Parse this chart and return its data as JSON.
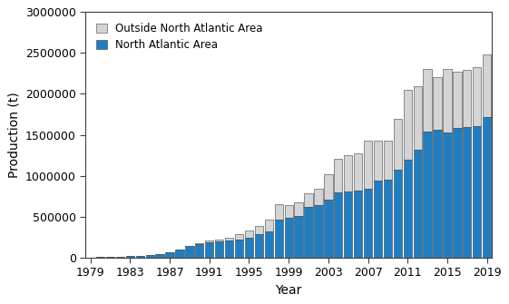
{
  "years": [
    1980,
    1981,
    1982,
    1983,
    1984,
    1985,
    1986,
    1987,
    1988,
    1989,
    1990,
    1991,
    1992,
    1993,
    1994,
    1995,
    1996,
    1997,
    1998,
    1999,
    2000,
    2001,
    2002,
    2003,
    2004,
    2005,
    2006,
    2007,
    2008,
    2009,
    2010,
    2011,
    2012,
    2013,
    2014,
    2015,
    2016,
    2017,
    2018,
    2019
  ],
  "north_atlantic": [
    3000,
    5000,
    9000,
    14000,
    20000,
    28000,
    45000,
    65000,
    95000,
    140000,
    165000,
    185000,
    195000,
    205000,
    215000,
    240000,
    280000,
    320000,
    460000,
    490000,
    510000,
    620000,
    640000,
    710000,
    790000,
    810000,
    820000,
    840000,
    940000,
    950000,
    1070000,
    1190000,
    1320000,
    1540000,
    1560000,
    1530000,
    1580000,
    1590000,
    1610000,
    1720000
  ],
  "outside_north_atlantic": [
    0,
    0,
    0,
    0,
    0,
    0,
    0,
    0,
    0,
    0,
    8000,
    18000,
    28000,
    38000,
    65000,
    95000,
    110000,
    140000,
    190000,
    150000,
    165000,
    160000,
    195000,
    310000,
    420000,
    440000,
    450000,
    590000,
    490000,
    480000,
    620000,
    860000,
    770000,
    760000,
    640000,
    770000,
    690000,
    700000,
    720000,
    760000
  ],
  "north_atlantic_color": "#1F7EC2",
  "outside_color": "#D4D4D4",
  "bar_edge_color": "#404040",
  "xlabel": "Year",
  "ylabel": "Production (t)",
  "ylim": [
    0,
    3000000
  ],
  "yticks": [
    0,
    500000,
    1000000,
    1500000,
    2000000,
    2500000,
    3000000
  ],
  "legend_outside": "Outside North Atlantic Area",
  "legend_north": "North Atlantic Area",
  "label_fontsize": 10,
  "tick_fontsize": 9,
  "legend_fontsize": 8.5
}
